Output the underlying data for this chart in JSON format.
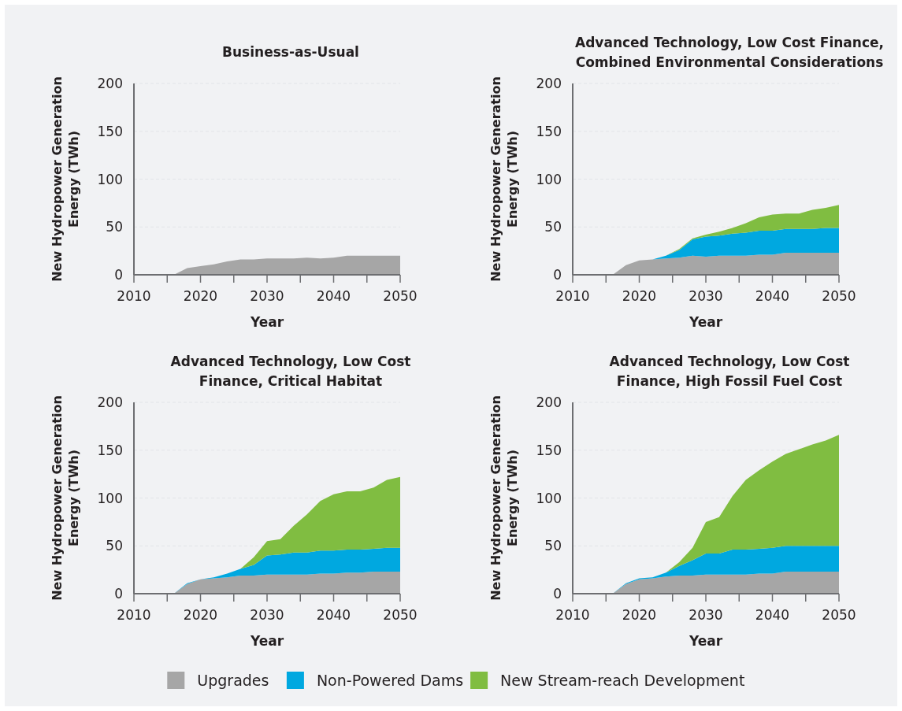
{
  "chart_data": [
    {
      "type": "area",
      "stacked": true,
      "title": "Business-as-Usual",
      "xlabel": "Year",
      "ylabel": "New Hydropower Generation\nEnergy (TWh)",
      "x": [
        2010,
        2012,
        2014,
        2016,
        2018,
        2020,
        2022,
        2024,
        2026,
        2028,
        2030,
        2032,
        2034,
        2036,
        2038,
        2040,
        2042,
        2044,
        2046,
        2048,
        2050
      ],
      "xlim": [
        2010,
        2050
      ],
      "xticks": [
        2010,
        {
          "value": 2015,
          "label": null
        },
        2020,
        {
          "value": 2025,
          "label": null
        },
        2030,
        {
          "value": 2035,
          "label": null
        },
        2040,
        {
          "value": 2045,
          "label": null
        },
        2050
      ],
      "ylim": [
        0,
        200
      ],
      "yticks": [
        0,
        50,
        100,
        150,
        200
      ],
      "grid": "y",
      "series": [
        {
          "color": "#a6a6a6",
          "values": [
            0,
            0,
            0,
            0,
            7,
            9,
            11,
            14,
            16,
            16,
            17,
            17,
            17,
            18,
            17,
            18,
            20,
            20,
            20,
            20,
            20
          ]
        }
      ]
    },
    {
      "type": "area",
      "stacked": true,
      "title": "Advanced Technology, Low Cost Finance,\nCombined Environmental Considerations",
      "xlabel": "Year",
      "ylabel": "New Hydropower Generation\nEnergy (TWh)",
      "x": [
        2010,
        2012,
        2014,
        2016,
        2018,
        2020,
        2022,
        2024,
        2026,
        2028,
        2030,
        2032,
        2034,
        2036,
        2038,
        2040,
        2042,
        2044,
        2046,
        2048,
        2050
      ],
      "xlim": [
        2010,
        2050
      ],
      "xticks": [
        2010,
        {
          "value": 2015,
          "label": null
        },
        2020,
        {
          "value": 2025,
          "label": null
        },
        2030,
        {
          "value": 2035,
          "label": null
        },
        2040,
        {
          "value": 2045,
          "label": null
        },
        2050
      ],
      "ylim": [
        0,
        200
      ],
      "yticks": [
        0,
        50,
        100,
        150,
        200
      ],
      "grid": "y",
      "series": [
        {
          "color": "#a6a6a6",
          "values": [
            0,
            0,
            0,
            0,
            10,
            15,
            16,
            17,
            18,
            20,
            19,
            20,
            20,
            20,
            21,
            21,
            23,
            23,
            23,
            23,
            23
          ]
        },
        {
          "color": "#00a8e0",
          "values": [
            0,
            0,
            0,
            0,
            0,
            0,
            0,
            3,
            8,
            17,
            21,
            21,
            23,
            24,
            25,
            25,
            25,
            25,
            25,
            26,
            26
          ]
        },
        {
          "color": "#80bd41",
          "values": [
            0,
            0,
            0,
            0,
            0,
            0,
            0,
            0,
            1,
            1,
            2,
            4,
            6,
            10,
            14,
            17,
            16,
            16,
            20,
            21,
            24
          ]
        }
      ]
    },
    {
      "type": "area",
      "stacked": true,
      "title": "Advanced Technology, Low Cost\nFinance, Critical Habitat",
      "xlabel": "Year",
      "ylabel": "New Hydropower Generation\nEnergy (TWh)",
      "x": [
        2010,
        2012,
        2014,
        2016,
        2018,
        2020,
        2022,
        2024,
        2026,
        2028,
        2030,
        2032,
        2034,
        2036,
        2038,
        2040,
        2042,
        2044,
        2046,
        2048,
        2050
      ],
      "xlim": [
        2010,
        2050
      ],
      "xticks": [
        2010,
        {
          "value": 2015,
          "label": null
        },
        2020,
        {
          "value": 2025,
          "label": null
        },
        2030,
        {
          "value": 2035,
          "label": null
        },
        2040,
        {
          "value": 2045,
          "label": null
        },
        2050
      ],
      "ylim": [
        0,
        200
      ],
      "yticks": [
        0,
        50,
        100,
        150,
        200
      ],
      "grid": "y",
      "series": [
        {
          "color": "#a6a6a6",
          "values": [
            0,
            0,
            0,
            0,
            10,
            15,
            16,
            17,
            19,
            19,
            20,
            20,
            20,
            20,
            21,
            21,
            22,
            22,
            23,
            23,
            23
          ]
        },
        {
          "color": "#00a8e0",
          "values": [
            0,
            0,
            0,
            0,
            1,
            0,
            1,
            4,
            7,
            11,
            20,
            21,
            23,
            23,
            24,
            24,
            24,
            24,
            24,
            25,
            25
          ]
        },
        {
          "color": "#80bd41",
          "values": [
            0,
            0,
            0,
            0,
            0,
            0,
            0,
            0,
            0,
            8,
            15,
            16,
            28,
            40,
            52,
            59,
            61,
            61,
            64,
            71,
            74
          ]
        }
      ]
    },
    {
      "type": "area",
      "stacked": true,
      "title": "Advanced Technology, Low Cost\nFinance, High Fossil Fuel Cost",
      "xlabel": "Year",
      "ylabel": "New Hydropower Generation\nEnergy (TWh)",
      "x": [
        2010,
        2012,
        2014,
        2016,
        2018,
        2020,
        2022,
        2024,
        2026,
        2028,
        2030,
        2032,
        2034,
        2036,
        2038,
        2040,
        2042,
        2044,
        2046,
        2048,
        2050
      ],
      "xlim": [
        2010,
        2050
      ],
      "xticks": [
        2010,
        {
          "value": 2015,
          "label": null
        },
        2020,
        {
          "value": 2025,
          "label": null
        },
        2030,
        {
          "value": 2035,
          "label": null
        },
        2040,
        {
          "value": 2045,
          "label": null
        },
        2050
      ],
      "ylim": [
        0,
        200
      ],
      "yticks": [
        0,
        50,
        100,
        150,
        200
      ],
      "grid": "y",
      "legend": "bottom",
      "series": [
        {
          "name": "Upgrades",
          "color": "#a6a6a6",
          "values": [
            0,
            0,
            0,
            0,
            10,
            15,
            16,
            18,
            19,
            19,
            20,
            20,
            20,
            20,
            21,
            21,
            23,
            23,
            23,
            23,
            23
          ]
        },
        {
          "name": "Non-Powered Dams",
          "color": "#00a8e0",
          "values": [
            0,
            0,
            0,
            0,
            1,
            1,
            1,
            4,
            10,
            16,
            22,
            22,
            26,
            26,
            26,
            27,
            27,
            27,
            27,
            27,
            27
          ]
        },
        {
          "name": "New Stream-reach Development",
          "color": "#80bd41",
          "values": [
            0,
            0,
            0,
            0,
            0,
            0,
            0,
            0,
            4,
            13,
            33,
            38,
            56,
            73,
            82,
            90,
            96,
            101,
            106,
            110,
            116
          ]
        }
      ]
    }
  ]
}
